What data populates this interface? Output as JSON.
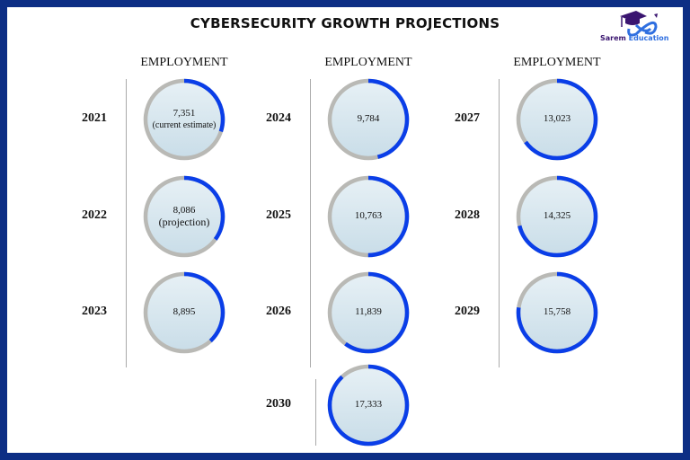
{
  "title": "CYBERSECURITY GROWTH PROJECTIONS",
  "logo": {
    "text_a": "Sarem",
    "text_b": "Education"
  },
  "colors": {
    "border": "#0d2e84",
    "arc": "#0a3ee8",
    "track": "#b9b9b5",
    "fill": "#d6e6ef"
  },
  "chart_data": {
    "type": "radial-progress",
    "title": "CYBERSECURITY GROWTH PROJECTIONS",
    "column_header": "EMPLOYMENT",
    "columns": [
      {
        "header": "EMPLOYMENT",
        "items": [
          {
            "year": "2021",
            "value": "7,351",
            "note": "(current estimate)",
            "progress": 0.3
          },
          {
            "year": "2022",
            "value": "8,086",
            "note": "(projection)",
            "progress": 0.35
          },
          {
            "year": "2023",
            "value": "8,895",
            "note": "",
            "progress": 0.38
          }
        ]
      },
      {
        "header": "EMPLOYMENT",
        "items": [
          {
            "year": "2024",
            "value": "9,784",
            "note": "",
            "progress": 0.46
          },
          {
            "year": "2025",
            "value": "10,763",
            "note": "",
            "progress": 0.5
          },
          {
            "year": "2026",
            "value": "11,839",
            "note": "",
            "progress": 0.6
          },
          {
            "year": "2030",
            "value": "17,333",
            "note": "",
            "progress": 0.88
          }
        ]
      },
      {
        "header": "EMPLOYMENT",
        "items": [
          {
            "year": "2027",
            "value": "13,023",
            "note": "",
            "progress": 0.65
          },
          {
            "year": "2028",
            "value": "14,325",
            "note": "",
            "progress": 0.71
          },
          {
            "year": "2029",
            "value": "15,758",
            "note": "",
            "progress": 0.77
          }
        ]
      }
    ]
  }
}
